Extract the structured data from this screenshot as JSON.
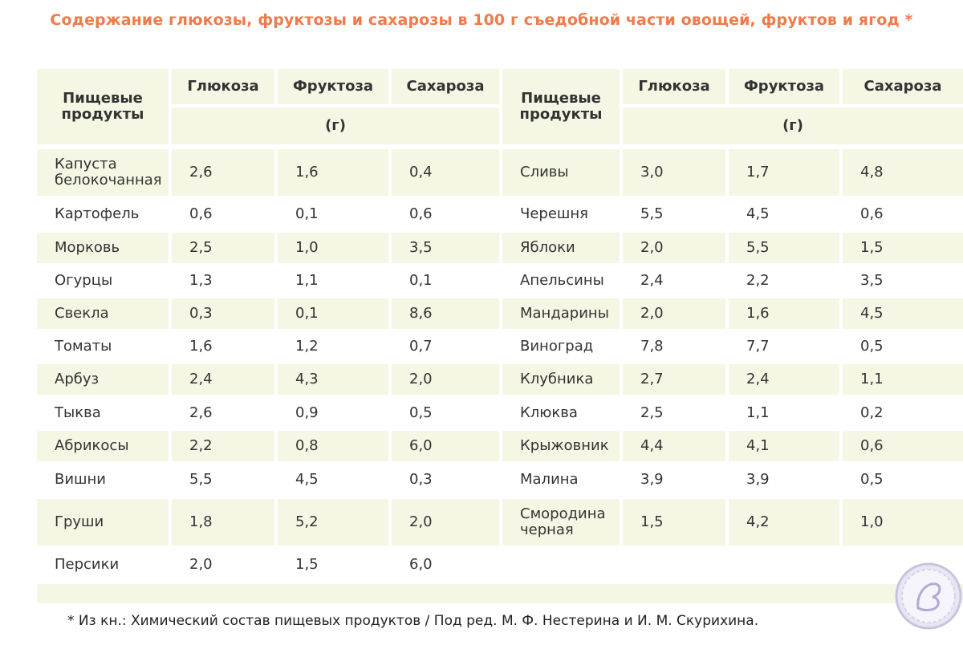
{
  "title": "Содержание глюкозы, фруктозы и сахарозы в 100 г съедобной части овощей, фруктов и ягод *",
  "headers": {
    "product": "Пищевые продукты",
    "glucose": "Глюкоза",
    "fructose": "Фруктоза",
    "sucrose": "Сахароза",
    "unit": "(г)"
  },
  "left_rows": [
    {
      "name": "Капуста белокочанная",
      "glucose": "2,6",
      "fructose": "1,6",
      "sucrose": "0,4"
    },
    {
      "name": "Картофель",
      "glucose": "0,6",
      "fructose": "0,1",
      "sucrose": "0,6"
    },
    {
      "name": "Морковь",
      "glucose": "2,5",
      "fructose": "1,0",
      "sucrose": "3,5"
    },
    {
      "name": "Огурцы",
      "glucose": "1,3",
      "fructose": "1,1",
      "sucrose": "0,1"
    },
    {
      "name": "Свекла",
      "glucose": "0,3",
      "fructose": "0,1",
      "sucrose": "8,6"
    },
    {
      "name": "Томаты",
      "glucose": "1,6",
      "fructose": "1,2",
      "sucrose": "0,7"
    },
    {
      "name": "Арбуз",
      "glucose": "2,4",
      "fructose": "4,3",
      "sucrose": "2,0"
    },
    {
      "name": "Тыква",
      "glucose": "2,6",
      "fructose": "0,9",
      "sucrose": "0,5"
    },
    {
      "name": "Абрикосы",
      "glucose": "2,2",
      "fructose": "0,8",
      "sucrose": "6,0"
    },
    {
      "name": "Вишни",
      "glucose": "5,5",
      "fructose": "4,5",
      "sucrose": "0,3"
    },
    {
      "name": "Груши",
      "glucose": "1,8",
      "fructose": "5,2",
      "sucrose": "2,0"
    },
    {
      "name": "Персики",
      "glucose": "2,0",
      "fructose": "1,5",
      "sucrose": "6,0"
    }
  ],
  "right_rows": [
    {
      "name": "Сливы",
      "glucose": "3,0",
      "fructose": "1,7",
      "sucrose": "4,8"
    },
    {
      "name": "Черешня",
      "glucose": "5,5",
      "fructose": "4,5",
      "sucrose": "0,6"
    },
    {
      "name": "Яблоки",
      "glucose": "2,0",
      "fructose": "5,5",
      "sucrose": "1,5"
    },
    {
      "name": "Апельсины",
      "glucose": "2,4",
      "fructose": "2,2",
      "sucrose": "3,5"
    },
    {
      "name": "Мандарины",
      "glucose": "2,0",
      "fructose": "1,6",
      "sucrose": "4,5"
    },
    {
      "name": "Виноград",
      "glucose": "7,8",
      "fructose": "7,7",
      "sucrose": "0,5"
    },
    {
      "name": "Клубника",
      "glucose": "2,7",
      "fructose": "2,4",
      "sucrose": "1,1"
    },
    {
      "name": "Клюква",
      "glucose": "2,5",
      "fructose": "1,1",
      "sucrose": "0,2"
    },
    {
      "name": "Крыжовник",
      "glucose": "4,4",
      "fructose": "4,1",
      "sucrose": "0,6"
    },
    {
      "name": "Малина",
      "glucose": "3,9",
      "fructose": "3,9",
      "sucrose": "0,5"
    },
    {
      "name": "Смородина черная",
      "glucose": "1,5",
      "fructose": "4,2",
      "sucrose": "1,0"
    }
  ],
  "footnote": "* Из кн.: Химический состав пищевых продуктов / Под ред. М. Ф. Нестерина и И. М. Скурихина."
}
